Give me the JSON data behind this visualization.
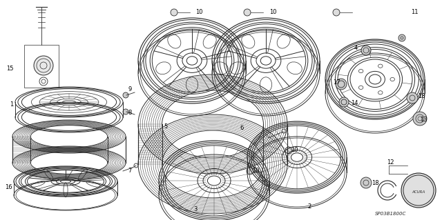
{
  "bg_color": "#ffffff",
  "line_color": "#2a2a2a",
  "label_color": "#000000",
  "figsize": [
    6.4,
    3.19
  ],
  "dpi": 100,
  "lw": 0.7,
  "label_fs": 6.0,
  "sp_text": "SP03B1800C",
  "acura_text": "ACURA"
}
